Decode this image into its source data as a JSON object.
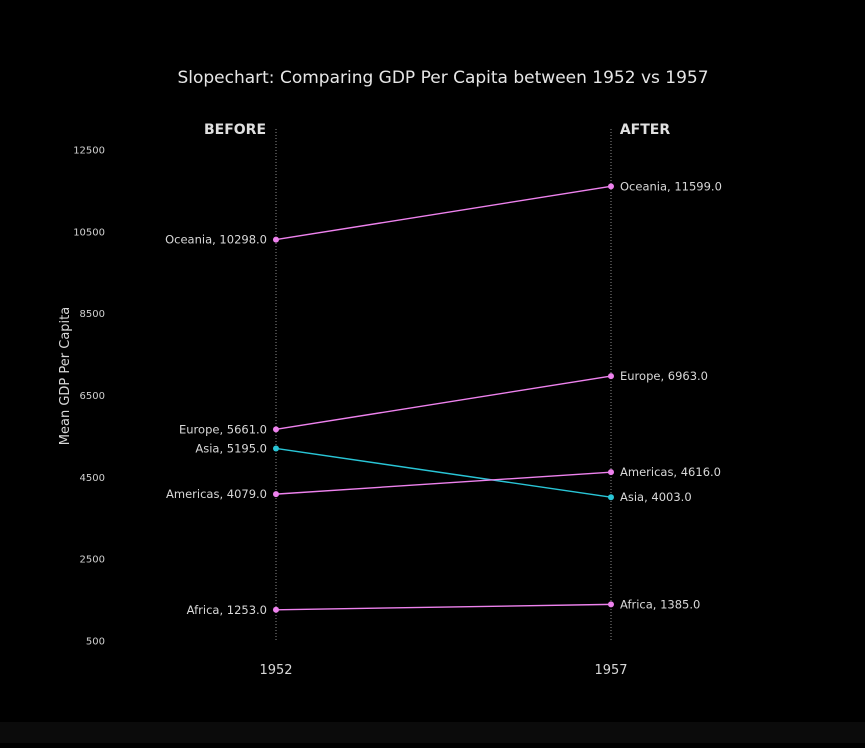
{
  "chart_data": {
    "type": "slope",
    "title": "Slopechart: Comparing GDP Per Capita between 1952 vs 1957",
    "ylabel": "Mean GDP Per Capita",
    "xlabel": "",
    "categories": [
      "1952",
      "1957"
    ],
    "column_headers": [
      "BEFORE",
      "AFTER"
    ],
    "ylim": [
      500,
      13000
    ],
    "yticks": [
      500,
      2500,
      4500,
      6500,
      8500,
      10500,
      12500
    ],
    "grid": false,
    "colors": {
      "increase": "#ee82ee",
      "decrease": "#29c5d6",
      "background": "#000000"
    },
    "series": [
      {
        "name": "Oceania",
        "values": [
          10298.0,
          11599.0
        ],
        "labels": [
          "Oceania, 10298.0",
          "Oceania, 11599.0"
        ]
      },
      {
        "name": "Europe",
        "values": [
          5661.0,
          6963.0
        ],
        "labels": [
          "Europe, 5661.0",
          "Europe, 6963.0"
        ]
      },
      {
        "name": "Asia",
        "values": [
          5195.0,
          4003.0
        ],
        "labels": [
          "Asia, 5195.0",
          "Asia, 4003.0"
        ]
      },
      {
        "name": "Americas",
        "values": [
          4079.0,
          4616.0
        ],
        "labels": [
          "Americas, 4079.0",
          "Americas, 4616.0"
        ]
      },
      {
        "name": "Africa",
        "values": [
          1253.0,
          1385.0
        ],
        "labels": [
          "Africa, 1253.0",
          "Africa, 1385.0"
        ]
      }
    ]
  }
}
